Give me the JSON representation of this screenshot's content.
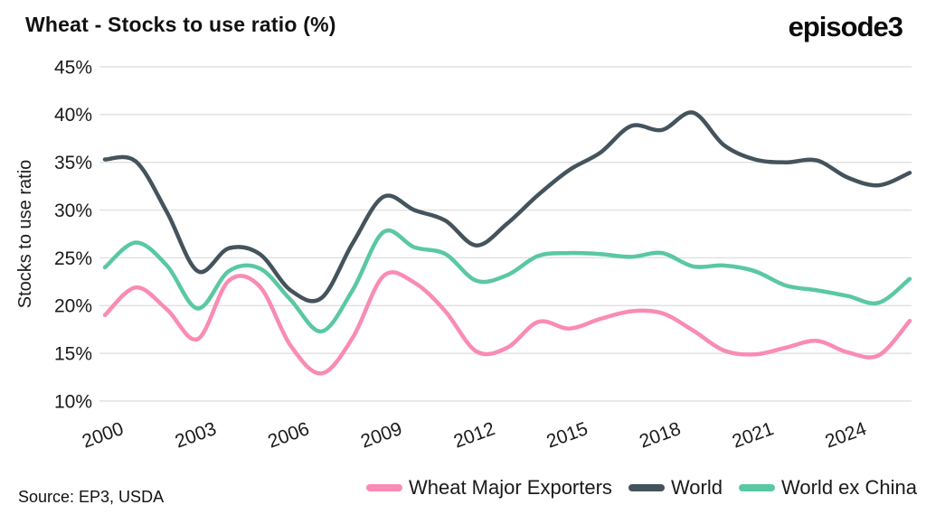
{
  "header": {
    "title": "Wheat - Stocks to use ratio (%)",
    "logo": "episode3"
  },
  "source_note": "Source: EP3, USDA",
  "chart_data": {
    "type": "line",
    "title": "Wheat - Stocks to use ratio (%)",
    "ylabel": "Stocks to use ratio",
    "xlabel": "",
    "ylim": [
      10,
      45
    ],
    "y_ticks": [
      10,
      15,
      20,
      25,
      30,
      35,
      40,
      45
    ],
    "y_tick_suffix": "%",
    "grid": "horizontal",
    "legend_position": "bottom-right",
    "x": [
      2000,
      2001,
      2002,
      2003,
      2004,
      2005,
      2006,
      2007,
      2008,
      2009,
      2010,
      2011,
      2012,
      2013,
      2014,
      2015,
      2016,
      2017,
      2018,
      2019,
      2020,
      2021,
      2022,
      2023,
      2024,
      2025,
      2026
    ],
    "x_tick_labels": [
      "2000",
      "2003",
      "2006",
      "2009",
      "2012",
      "2015",
      "2018",
      "2021",
      "2024"
    ],
    "x_ticks": [
      2000,
      2003,
      2006,
      2009,
      2012,
      2015,
      2018,
      2021,
      2024
    ],
    "series": [
      {
        "name": "Wheat Major Exporters",
        "color": "#f98bb4",
        "values": [
          19.0,
          21.9,
          19.6,
          16.5,
          22.6,
          22.0,
          15.8,
          12.9,
          16.6,
          23.1,
          22.4,
          19.4,
          15.2,
          15.6,
          18.3,
          17.6,
          18.6,
          19.4,
          19.2,
          17.4,
          15.3,
          14.9,
          15.6,
          16.3,
          15.1,
          14.8,
          18.4
        ]
      },
      {
        "name": "World",
        "color": "#44535c",
        "values": [
          35.3,
          35.1,
          29.8,
          23.6,
          26.0,
          25.4,
          21.6,
          20.8,
          26.5,
          31.4,
          30.0,
          28.9,
          26.3,
          28.6,
          31.6,
          34.2,
          36.0,
          38.8,
          38.4,
          40.2,
          36.8,
          35.3,
          35.0,
          35.2,
          33.4,
          32.6,
          33.9
        ]
      },
      {
        "name": "World ex China",
        "color": "#5ac8a2",
        "values": [
          24.0,
          26.6,
          24.2,
          19.7,
          23.6,
          23.9,
          20.6,
          17.3,
          21.6,
          27.7,
          26.1,
          25.4,
          22.6,
          23.2,
          25.2,
          25.5,
          25.4,
          25.1,
          25.5,
          24.1,
          24.2,
          23.6,
          22.1,
          21.6,
          21.0,
          20.3,
          22.8
        ]
      }
    ],
    "colors": {
      "grid": "#dcdcdc",
      "axis_text": "#1a1a1a"
    }
  }
}
